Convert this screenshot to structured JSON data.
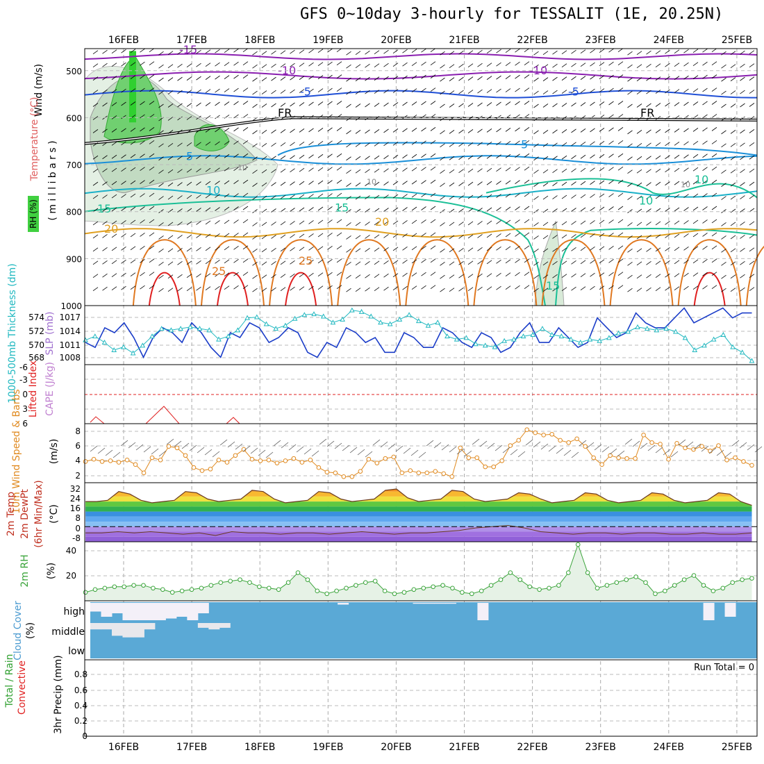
{
  "title": "GFS 0~10day 3-hourly for TESSALIT (1E, 20.25N)",
  "dates": [
    "16FEB",
    "17FEB",
    "18FEB",
    "19FEB",
    "20FEB",
    "21FEB",
    "22FEB",
    "23FEB",
    "24FEB",
    "25FEB"
  ],
  "colors": {
    "wind_purple": "#8a1fb0",
    "blue": "#1f4fd6",
    "freezing": "#000000",
    "lightblue": "#1a8fd8",
    "cyan": "#1ab0c8",
    "teal": "#1abf96",
    "orange": "#e0a020",
    "darkorange": "#e07820",
    "red": "#e02020",
    "slp": "#1a3cc8",
    "thick": "#20b8c0",
    "wind10": "#e08a20",
    "rh": "#3aa43a",
    "cloud": "#5aa9d6"
  },
  "panels": {
    "profile": {
      "ylabel_wind": "Wind (m/s)",
      "ylabel_temp": "Temperature (°C)",
      "ylabel_mb": "( m i l l i b a r s )",
      "rh_label": "RH (%)",
      "yticks": [
        "500",
        "600",
        "700",
        "800",
        "900",
        "1000"
      ],
      "contour_labels": [
        "-15",
        "-10",
        "-5",
        "FR",
        "5",
        "10",
        "15",
        "20",
        "25",
        "-10",
        "-5",
        "FR",
        "5",
        "10",
        "10",
        "15",
        "20",
        "25",
        "15",
        "10",
        "10",
        "10"
      ]
    },
    "slp": {
      "ylabel_slp": "SLP (mb)",
      "ylabel_thick": "1000-500mb Thickness (dm)",
      "yticks_left": [
        "574",
        "572",
        "570",
        "568"
      ],
      "yticks_right": [
        "1017",
        "1014",
        "1011",
        "1008"
      ]
    },
    "lifted": {
      "ylabel_li": "Lifted Index",
      "ylabel_cape": "CAPE (J/kg)",
      "yticks": [
        "-6",
        "-3",
        "0",
        "3",
        "6"
      ]
    },
    "wind10": {
      "ylabel": "10m Wind Speed & Barbs",
      "unit": "(m/s)",
      "yticks": [
        "8",
        "6",
        "4",
        "2"
      ]
    },
    "temp2m": {
      "ylabel": "2m Temp",
      "ylabel2": "2m DewPt",
      "ylabel3": "(6hr Min/Max)",
      "unit": "(°C)",
      "yticks": [
        "32",
        "24",
        "16",
        "8",
        "0",
        "-8"
      ]
    },
    "rh2m": {
      "ylabel": "2m RH",
      "unit": "(%)",
      "yticks": [
        "40",
        "20"
      ]
    },
    "cloud": {
      "ylabel": "Cloud Cover",
      "unit": "(%)",
      "levels": [
        "high",
        "middle",
        "low"
      ]
    },
    "precip": {
      "ylabel1": "Total / Rain",
      "ylabel2": "Convective",
      "ylabel3": "3hr Precip (mm)",
      "run_total": "Run Total =  0",
      "yticks": [
        "0.8",
        "0.6",
        "0.4",
        "0.2",
        "0"
      ]
    }
  },
  "chart_data": {
    "type": "line",
    "x_dates": [
      "16FEB",
      "17FEB",
      "18FEB",
      "19FEB",
      "20FEB",
      "21FEB",
      "22FEB",
      "23FEB",
      "24FEB",
      "25FEB"
    ],
    "slp_mb": [
      1011,
      1010,
      1014,
      1013,
      1015,
      1012,
      1008,
      1012,
      1014,
      1013,
      1011,
      1015,
      1013,
      1010,
      1008,
      1013,
      1012,
      1015,
      1014,
      1011,
      1012,
      1014,
      1013,
      1009,
      1008,
      1011,
      1010,
      1014,
      1013,
      1011,
      1012,
      1009,
      1009,
      1013,
      1012,
      1010,
      1010,
      1014,
      1013,
      1011,
      1010,
      1013,
      1012,
      1009,
      1010,
      1013,
      1015,
      1011,
      1011,
      1014,
      1012,
      1010,
      1011,
      1016,
      1014,
      1012,
      1013,
      1017,
      1015,
      1014,
      1014,
      1016,
      1018,
      1015,
      1016,
      1017,
      1018,
      1016,
      1017,
      1017
    ],
    "thickness_dm": [
      570.5,
      571,
      570.2,
      569.2,
      569.6,
      568.8,
      569.8,
      571,
      572,
      571.8,
      572,
      572.2,
      572,
      571.8,
      570.6,
      571,
      571.8,
      573.4,
      573.5,
      572.6,
      572,
      572.4,
      573.3,
      573.8,
      573.9,
      573.6,
      572.8,
      573.2,
      574.4,
      574.2,
      573.6,
      572.8,
      572.6,
      573.2,
      573.8,
      573,
      572.4,
      572.8,
      571,
      570.6,
      570.8,
      570,
      569.8,
      569.6,
      570.4,
      570.6,
      571,
      571.2,
      572,
      571.2,
      571,
      570.6,
      570.2,
      570.6,
      570.4,
      570.8,
      571.4,
      571.6,
      572.2,
      572,
      571.8,
      572,
      571.6,
      570.8,
      569.2,
      569.8,
      570.6,
      571.2,
      569.6,
      568.9,
      567.8
    ],
    "wind10_ms": [
      4,
      4.3,
      4,
      4.1,
      3.9,
      4.2,
      3.6,
      2.5,
      4.5,
      4.2,
      6,
      5.8,
      4.8,
      3.2,
      2.8,
      3,
      4.2,
      3.9,
      4.8,
      5.6,
      4.3,
      4.1,
      4.2,
      3.8,
      4.1,
      4.4,
      3.9,
      4.2,
      3.2,
      2.6,
      2.5,
      2,
      2,
      2.7,
      4.3,
      3.8,
      4.4,
      4.6,
      2.5,
      2.8,
      2.5,
      2.5,
      2.7,
      2.4,
      2,
      5.8,
      4.5,
      4.5,
      3.3,
      3.3,
      4.1,
      6.1,
      6.8,
      8.2,
      7.8,
      7.5,
      7.6,
      6.8,
      6.5,
      7,
      6,
      4.5,
      3.6,
      4.8,
      4.5,
      4.4,
      4.4,
      7.5,
      6.5,
      6.3,
      4.3,
      6.4,
      5.8,
      5.6,
      6,
      5.4,
      6.1,
      4.2,
      4.5,
      4,
      3.5
    ],
    "temp2m_c": [
      20,
      20,
      21,
      28,
      26,
      21,
      19,
      20,
      21,
      28,
      27,
      22,
      20,
      21,
      22,
      29,
      28,
      22,
      19,
      20,
      21,
      28,
      27,
      22,
      20,
      21,
      22,
      29,
      30,
      23,
      20,
      21,
      22,
      29,
      28,
      22,
      20,
      21,
      22,
      27,
      26,
      22,
      19,
      20,
      21,
      27,
      26,
      21,
      19,
      20,
      21,
      27,
      26,
      21,
      19,
      20,
      21,
      27,
      26,
      20,
      17
    ],
    "dewpt2m_c": [
      -5,
      -5,
      -4,
      -5,
      -4,
      -5,
      -6,
      -5,
      -7,
      -4,
      -5,
      -5,
      -6,
      -5,
      -5,
      -6,
      -5,
      -4,
      -5,
      -6,
      -5,
      -5,
      -4,
      -3,
      -1,
      0,
      1,
      -1,
      -4,
      -5,
      -6,
      -5,
      -5,
      -6,
      -5,
      -5,
      -6,
      -6,
      -5,
      -6,
      -6,
      -5
    ],
    "rh2m_pct": [
      11,
      13,
      14,
      15,
      15,
      16,
      16,
      14,
      13,
      11,
      12,
      13,
      14,
      16,
      18,
      19,
      20,
      18,
      15,
      14,
      13,
      18,
      25,
      20,
      12,
      10,
      12,
      14,
      16,
      18,
      19,
      12,
      10,
      11,
      13,
      14,
      15,
      16,
      14,
      11,
      10,
      12,
      16,
      20,
      25,
      20,
      15,
      13,
      14,
      16,
      25,
      45,
      25,
      14,
      16,
      18,
      20,
      22,
      18,
      10,
      12,
      16,
      20,
      23,
      16,
      12,
      14,
      18,
      20,
      21
    ],
    "cloud_high_pct": [
      50,
      80,
      60,
      100,
      100,
      100,
      100,
      90,
      80,
      100,
      60,
      0,
      0,
      0,
      0,
      0,
      0,
      0,
      0,
      0,
      0,
      0,
      0,
      10,
      0,
      0,
      0,
      0,
      0,
      0,
      5,
      5,
      5,
      5,
      0,
      0,
      100,
      0,
      0,
      0,
      0,
      0,
      0,
      0,
      0,
      0,
      0,
      0,
      0,
      0,
      0,
      0,
      0,
      0,
      0,
      0,
      0,
      100,
      0,
      80,
      0,
      0
    ],
    "cloud_mid_pct": [
      40,
      40,
      80,
      90,
      90,
      40,
      0,
      0,
      0,
      0,
      30,
      40,
      30,
      0,
      0,
      0,
      0,
      0,
      0,
      0,
      0,
      0,
      0,
      0,
      0,
      0,
      0,
      0,
      0,
      0,
      0,
      0,
      0,
      0,
      0,
      0,
      0,
      0,
      0,
      0,
      0,
      0,
      0,
      0,
      0,
      0,
      0,
      0,
      0,
      0,
      0,
      0,
      0,
      0,
      0,
      0,
      0,
      0,
      0,
      0,
      0,
      0
    ],
    "precip_mm": [
      0,
      0,
      0,
      0,
      0,
      0,
      0,
      0,
      0,
      0
    ],
    "run_total_mm": 0
  }
}
